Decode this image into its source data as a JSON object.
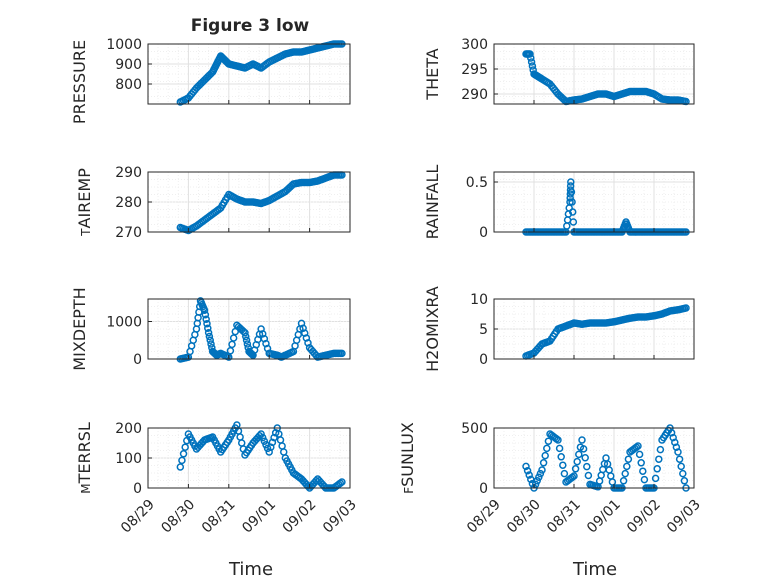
{
  "figure": {
    "title": "Figure 3 low",
    "xlabel": "Time",
    "x_tick_labels": [
      "08/29",
      "08/30",
      "08/31",
      "09/01",
      "09/02",
      "09/03"
    ],
    "marker_color": "#0072BD"
  },
  "chart_data": [
    {
      "type": "scatter",
      "ylabel": "PRESSURE",
      "ylim": [
        700,
        1000
      ],
      "y_ticks": [
        800,
        900,
        1000
      ],
      "y_tick_labels": [
        "800",
        "900",
        "1000"
      ],
      "x_range_days": [
        "08/29",
        "09/03"
      ],
      "grid": true,
      "series": [
        {
          "x": [
            0.8,
            1.0,
            1.2,
            1.4,
            1.6,
            1.7,
            1.8,
            1.9,
            2.0,
            2.2,
            2.4,
            2.6,
            2.8,
            3.0,
            3.2,
            3.4,
            3.6,
            3.8,
            4.0,
            4.2,
            4.4,
            4.6,
            4.8
          ],
          "y": [
            710,
            730,
            780,
            820,
            860,
            900,
            940,
            920,
            900,
            890,
            880,
            900,
            880,
            910,
            930,
            950,
            960,
            960,
            970,
            980,
            990,
            1000,
            1000
          ]
        }
      ]
    },
    {
      "type": "scatter",
      "ylabel": "THETA",
      "ylim": [
        288,
        300
      ],
      "y_ticks": [
        290,
        295,
        300
      ],
      "y_tick_labels": [
        "290",
        "295",
        "300"
      ],
      "x_range_days": [
        "08/29",
        "09/03"
      ],
      "grid": true,
      "series": [
        {
          "x": [
            0.8,
            0.9,
            1.0,
            1.1,
            1.2,
            1.4,
            1.6,
            1.8,
            2.0,
            2.2,
            2.4,
            2.6,
            2.8,
            3.0,
            3.2,
            3.4,
            3.6,
            3.8,
            4.0,
            4.2,
            4.4,
            4.6,
            4.8
          ],
          "y": [
            298,
            298,
            294,
            293.5,
            293,
            292,
            290,
            288.5,
            288.8,
            289,
            289.5,
            290,
            290,
            289.5,
            290,
            290.5,
            290.5,
            290.5,
            290,
            289,
            288.8,
            288.8,
            288.5
          ]
        }
      ]
    },
    {
      "type": "scatter",
      "ylabel": "AIR_TEMP",
      "ylim": [
        270,
        290
      ],
      "y_ticks": [
        270,
        280,
        290
      ],
      "y_tick_labels": [
        "270",
        "280",
        "290"
      ],
      "x_range_days": [
        "08/29",
        "09/03"
      ],
      "grid": true,
      "series": [
        {
          "x": [
            0.8,
            1.0,
            1.2,
            1.4,
            1.6,
            1.8,
            2.0,
            2.2,
            2.4,
            2.6,
            2.8,
            3.0,
            3.2,
            3.4,
            3.6,
            3.8,
            4.0,
            4.2,
            4.4,
            4.6,
            4.8
          ],
          "y": [
            271.5,
            270.5,
            272,
            274,
            276,
            278,
            282.5,
            281,
            280,
            280,
            279.5,
            280.5,
            282,
            283.5,
            286,
            286.5,
            286.5,
            287,
            288,
            289,
            289
          ]
        }
      ]
    },
    {
      "type": "scatter",
      "ylabel": "RAINFALL",
      "ylim": [
        0,
        0.6
      ],
      "y_ticks": [
        0,
        0.5
      ],
      "y_tick_labels": [
        "0",
        "0.5"
      ],
      "x_range_days": [
        "08/29",
        "09/03"
      ],
      "grid": true,
      "series": [
        {
          "x": [
            0.8,
            1.0,
            1.2,
            1.4,
            1.6,
            1.8,
            1.9,
            1.92,
            2.0,
            2.2,
            2.4,
            2.6,
            2.8,
            3.0,
            3.2,
            3.3,
            3.4,
            3.6,
            3.8,
            4.0,
            4.2,
            4.4,
            4.6,
            4.8
          ],
          "y": [
            0,
            0,
            0,
            0,
            0,
            0,
            0.3,
            0.5,
            0,
            0,
            0,
            0,
            0,
            0,
            0,
            0.1,
            0,
            0,
            0,
            0,
            0,
            0,
            0,
            0
          ]
        }
      ]
    },
    {
      "type": "scatter",
      "ylabel": "MIXDEPTH",
      "ylim": [
        0,
        1600
      ],
      "y_ticks": [
        0,
        1000
      ],
      "y_tick_labels": [
        "0",
        "1000"
      ],
      "x_range_days": [
        "08/29",
        "09/03"
      ],
      "grid": true,
      "series": [
        {
          "x": [
            0.8,
            1.0,
            1.2,
            1.3,
            1.4,
            1.5,
            1.6,
            1.7,
            1.8,
            2.0,
            2.2,
            2.4,
            2.5,
            2.6,
            2.8,
            3.0,
            3.2,
            3.3,
            3.4,
            3.6,
            3.8,
            4.0,
            4.2,
            4.4,
            4.6,
            4.8
          ],
          "y": [
            0,
            50,
            800,
            1550,
            1300,
            700,
            200,
            100,
            150,
            50,
            900,
            700,
            200,
            100,
            800,
            150,
            100,
            50,
            100,
            200,
            950,
            300,
            50,
            100,
            150,
            150
          ]
        }
      ]
    },
    {
      "type": "scatter",
      "ylabel": "H2OMIXRA",
      "ylim": [
        0,
        10
      ],
      "y_ticks": [
        0,
        5,
        10
      ],
      "y_tick_labels": [
        "0",
        "5",
        "10"
      ],
      "x_range_days": [
        "08/29",
        "09/03"
      ],
      "grid": true,
      "series": [
        {
          "x": [
            0.8,
            1.0,
            1.2,
            1.4,
            1.6,
            1.8,
            2.0,
            2.2,
            2.4,
            2.6,
            2.8,
            3.0,
            3.2,
            3.4,
            3.6,
            3.8,
            4.0,
            4.2,
            4.4,
            4.6,
            4.8
          ],
          "y": [
            0.5,
            1.0,
            2.5,
            3.0,
            5.0,
            5.5,
            6.0,
            5.8,
            6.0,
            6.0,
            6.0,
            6.2,
            6.5,
            6.8,
            7.0,
            7.0,
            7.2,
            7.5,
            8.0,
            8.2,
            8.5
          ]
        }
      ]
    },
    {
      "type": "scatter",
      "ylabel": "TERR_MSL",
      "ylim": [
        0,
        200
      ],
      "y_ticks": [
        0,
        100,
        200
      ],
      "y_tick_labels": [
        "0",
        "100",
        "200"
      ],
      "x_range_days": [
        "08/29",
        "09/03"
      ],
      "grid": true,
      "series": [
        {
          "x": [
            0.8,
            1.0,
            1.2,
            1.4,
            1.6,
            1.8,
            2.0,
            2.2,
            2.4,
            2.6,
            2.8,
            3.0,
            3.2,
            3.4,
            3.6,
            3.8,
            4.0,
            4.2,
            4.4,
            4.6,
            4.8
          ],
          "y": [
            70,
            180,
            130,
            160,
            170,
            120,
            160,
            210,
            110,
            150,
            180,
            120,
            200,
            100,
            50,
            30,
            0,
            30,
            0,
            0,
            20
          ]
        }
      ]
    },
    {
      "type": "scatter",
      "ylabel": "SUN_FLUX",
      "ylim": [
        0,
        500
      ],
      "y_ticks": [
        0,
        500
      ],
      "y_tick_labels": [
        "0",
        "500"
      ],
      "x_range_days": [
        "08/29",
        "09/03"
      ],
      "grid": true,
      "series": [
        {
          "x": [
            0.8,
            1.0,
            1.2,
            1.4,
            1.6,
            1.8,
            2.0,
            2.2,
            2.4,
            2.6,
            2.8,
            3.0,
            3.2,
            3.4,
            3.6,
            3.8,
            4.0,
            4.2,
            4.4,
            4.6,
            4.8
          ],
          "y": [
            180,
            0,
            150,
            450,
            400,
            50,
            100,
            400,
            30,
            10,
            250,
            0,
            0,
            300,
            350,
            0,
            0,
            400,
            500,
            300,
            0
          ]
        }
      ]
    }
  ]
}
